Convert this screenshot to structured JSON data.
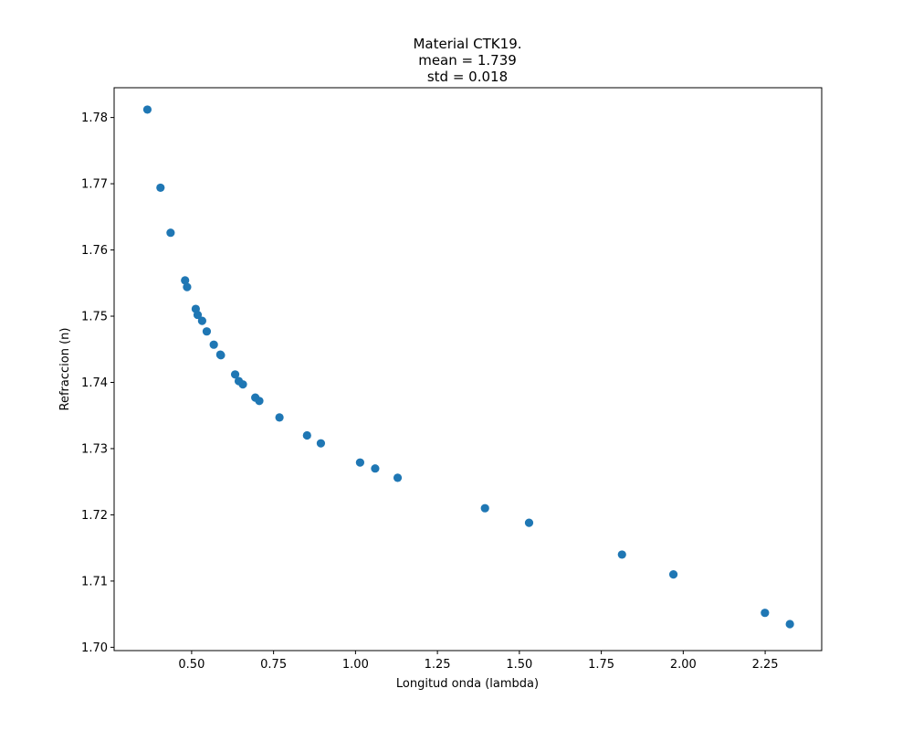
{
  "chart_data": {
    "type": "scatter",
    "title_lines": [
      "Material CTK19.",
      "mean = 1.739",
      "std = 0.018"
    ],
    "xlabel": "Longitud onda (lambda)",
    "ylabel": "Refraccion (n)",
    "xlim": [
      0.2635,
      2.4225
    ],
    "ylim": [
      1.6995,
      1.7845
    ],
    "xticks": [
      0.5,
      0.75,
      1.0,
      1.25,
      1.5,
      1.75,
      2.0,
      2.25
    ],
    "xtick_labels": [
      "0.50",
      "0.75",
      "1.00",
      "1.25",
      "1.50",
      "1.75",
      "2.00",
      "2.25"
    ],
    "yticks": [
      1.7,
      1.71,
      1.72,
      1.73,
      1.74,
      1.75,
      1.76,
      1.77,
      1.78
    ],
    "ytick_labels": [
      "1.70",
      "1.71",
      "1.72",
      "1.73",
      "1.74",
      "1.75",
      "1.76",
      "1.77",
      "1.78"
    ],
    "grid": false,
    "legend": null,
    "colors": {
      "marker": "#1f77b4",
      "axes": "#000000",
      "background": "#ffffff"
    },
    "series": [
      {
        "x": [
          0.365,
          0.405,
          0.4358,
          0.48,
          0.4861,
          0.5125,
          0.5184,
          0.532,
          0.5461,
          0.5676,
          0.5876,
          0.5893,
          0.6328,
          0.6438,
          0.6563,
          0.6943,
          0.7065,
          0.768,
          0.8521,
          0.8943,
          1.014,
          1.06,
          1.1286,
          1.3951,
          1.5296,
          1.8131,
          1.97,
          2.2493,
          2.3254
        ],
        "y": [
          1.7812,
          1.7694,
          1.7626,
          1.7554,
          1.7544,
          1.7511,
          1.7502,
          1.7493,
          1.7477,
          1.7457,
          1.7442,
          1.7441,
          1.7412,
          1.7402,
          1.7397,
          1.7377,
          1.7372,
          1.7347,
          1.732,
          1.7308,
          1.7279,
          1.727,
          1.7256,
          1.721,
          1.7188,
          1.714,
          1.711,
          1.7052,
          1.7035
        ]
      }
    ]
  }
}
